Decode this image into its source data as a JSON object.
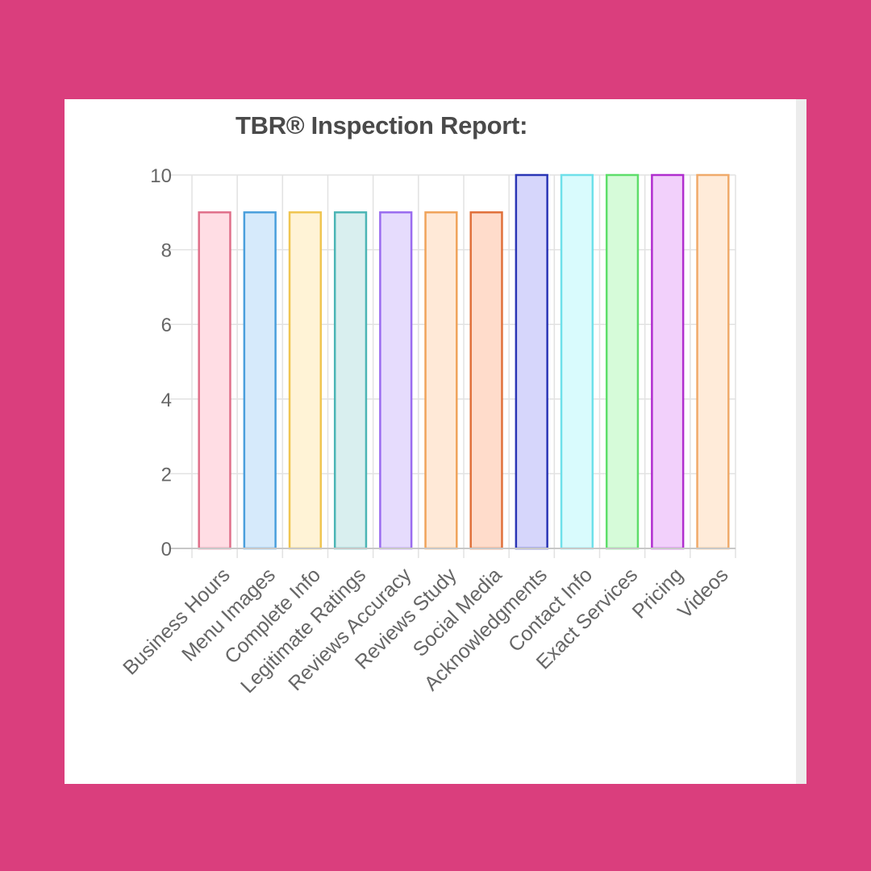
{
  "page": {
    "background_color": "#da3e7d"
  },
  "chart_data": {
    "type": "bar",
    "title": "TBR® Inspection Report:",
    "categories": [
      "Business Hours",
      "Menu Images",
      "Complete Info",
      "Legitimate Ratings",
      "Reviews Accuracy",
      "Reviews Study",
      "Social Media",
      "Acknowledgments",
      "Contact Info",
      "Exact Services",
      "Pricing",
      "Videos"
    ],
    "values": [
      9,
      9,
      9,
      9,
      9,
      9,
      9,
      10,
      10,
      10,
      10,
      10
    ],
    "ylim": [
      0,
      10
    ],
    "yticks": [
      0,
      2,
      4,
      6,
      8,
      10
    ],
    "grid": true,
    "legend": "none",
    "bar_colors": [
      {
        "fill": "#ffdde4",
        "stroke": "#e0708a"
      },
      {
        "fill": "#d6eafb",
        "stroke": "#4a9fdc"
      },
      {
        "fill": "#fff3d6",
        "stroke": "#f0c550"
      },
      {
        "fill": "#d9efef",
        "stroke": "#4bb5b5"
      },
      {
        "fill": "#e6dcfd",
        "stroke": "#9a6cf0"
      },
      {
        "fill": "#ffe9d7",
        "stroke": "#f0a35a"
      },
      {
        "fill": "#ffdccb",
        "stroke": "#e0703a"
      },
      {
        "fill": "#d6d6fb",
        "stroke": "#2a35b5"
      },
      {
        "fill": "#d9fbfd",
        "stroke": "#6ee0ea"
      },
      {
        "fill": "#d6fbd9",
        "stroke": "#5ede6a"
      },
      {
        "fill": "#f2d0fb",
        "stroke": "#b02ecf"
      },
      {
        "fill": "#ffebd9",
        "stroke": "#f0aa6a"
      }
    ]
  }
}
